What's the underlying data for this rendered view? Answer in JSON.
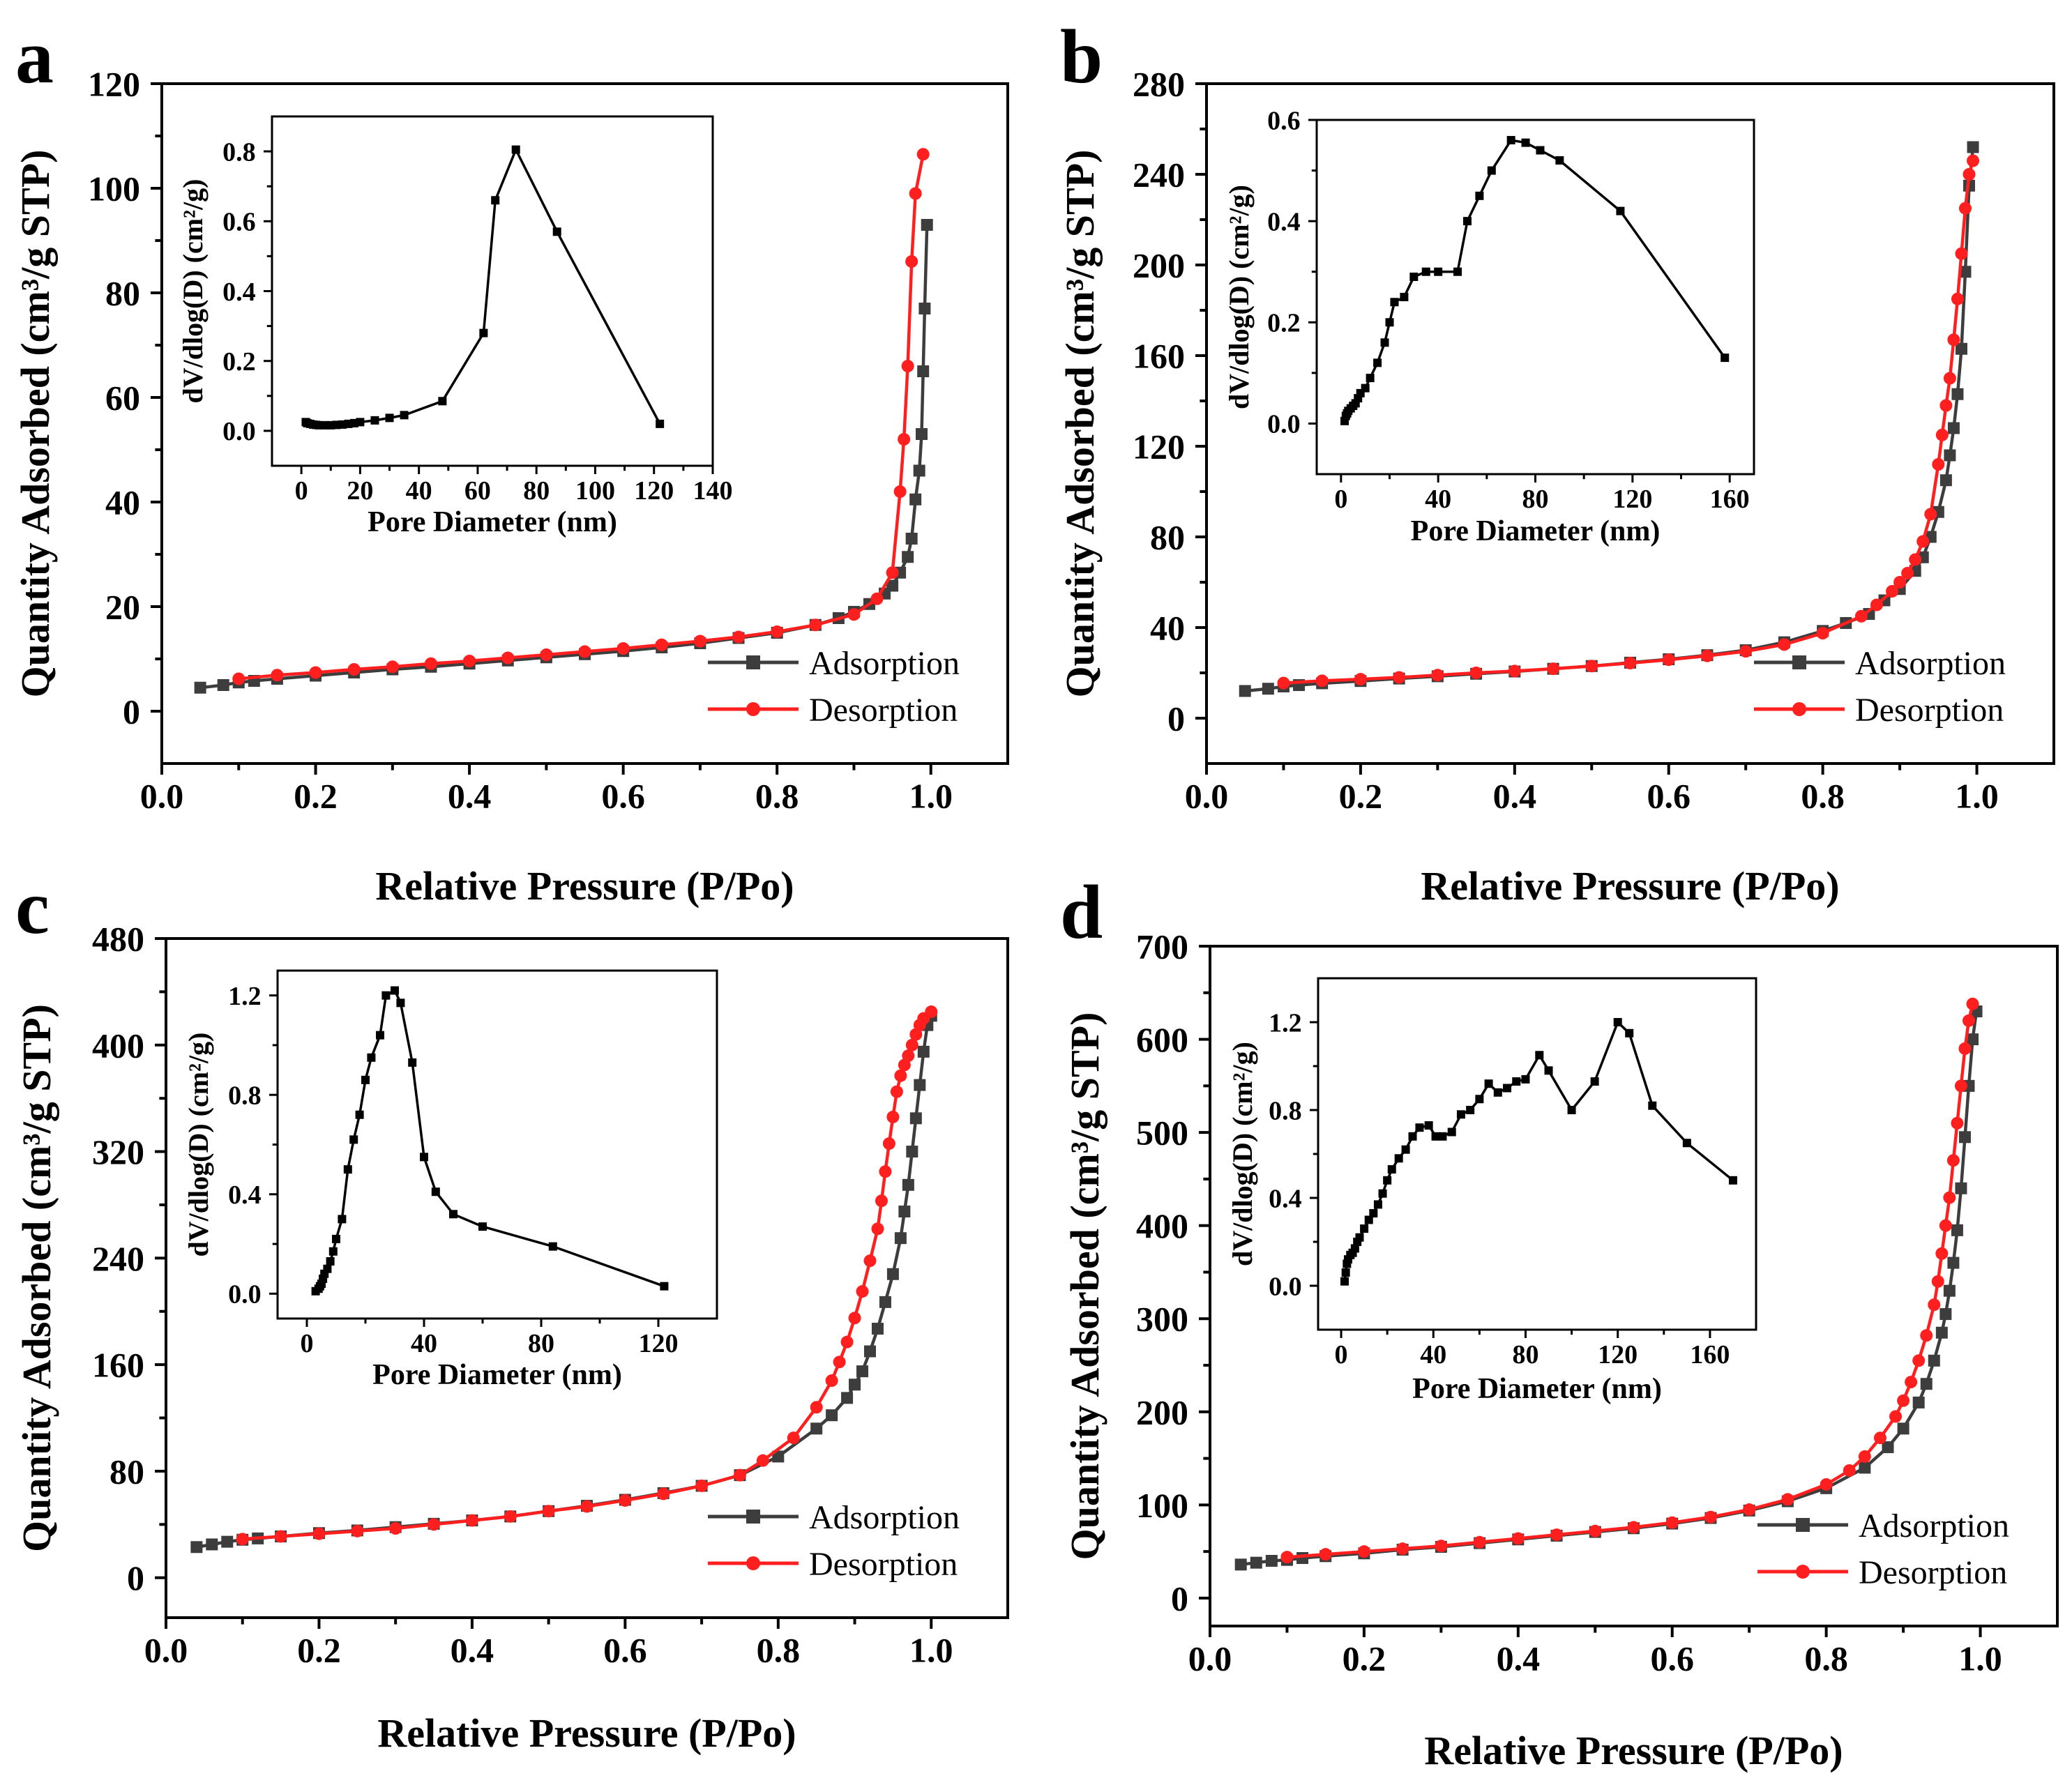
{
  "figure": {
    "series_colors": {
      "adsorption": "#3d3d3d",
      "desorption": "#ff1f1f",
      "inset": "#000000"
    },
    "marker_shapes": {
      "adsorption": "square",
      "desorption": "circle",
      "inset": "square"
    }
  },
  "chart_data": [
    {
      "panel": "a",
      "type": "line",
      "xlabel": "Relative Pressure (P/Po)",
      "ylabel": "Quantity Adsorbed (cm³/g STP)",
      "xlim": [
        0,
        1.1
      ],
      "ylim": [
        -10,
        120
      ],
      "xticks": [
        0.0,
        0.2,
        0.4,
        0.6,
        0.8,
        1.0
      ],
      "xtick_labels": [
        "0.0",
        "0.2",
        "0.4",
        "0.6",
        "0.8",
        "1.0"
      ],
      "yticks": [
        0,
        20,
        40,
        60,
        80,
        100,
        120
      ],
      "legend": [
        "Adsorption",
        "Desorption"
      ],
      "legend_position": "bottom-right",
      "series": [
        {
          "name": "Adsorption",
          "marker": "square",
          "x": [
            0.05,
            0.08,
            0.1,
            0.12,
            0.15,
            0.2,
            0.25,
            0.3,
            0.35,
            0.4,
            0.45,
            0.5,
            0.55,
            0.6,
            0.65,
            0.7,
            0.75,
            0.8,
            0.85,
            0.88,
            0.9,
            0.92,
            0.94,
            0.95,
            0.96,
            0.97,
            0.975,
            0.98,
            0.985,
            0.988,
            0.99,
            0.992,
            0.995
          ],
          "y": [
            4.5,
            5.0,
            5.5,
            5.8,
            6.2,
            6.8,
            7.4,
            8.0,
            8.5,
            9.1,
            9.7,
            10.3,
            10.9,
            11.5,
            12.2,
            13.0,
            14.0,
            15.0,
            16.5,
            17.8,
            19.0,
            20.5,
            22.5,
            24.0,
            26.5,
            29.5,
            33.0,
            40.5,
            46.0,
            53.0,
            65.0,
            77.0,
            93.0
          ]
        },
        {
          "name": "Desorption",
          "marker": "circle",
          "x": [
            0.1,
            0.15,
            0.2,
            0.25,
            0.3,
            0.35,
            0.4,
            0.45,
            0.5,
            0.55,
            0.6,
            0.65,
            0.7,
            0.75,
            0.8,
            0.85,
            0.9,
            0.93,
            0.95,
            0.96,
            0.965,
            0.97,
            0.975,
            0.98,
            0.99
          ],
          "y": [
            6.2,
            6.9,
            7.4,
            8.0,
            8.5,
            9.1,
            9.6,
            10.2,
            10.8,
            11.4,
            12.0,
            12.7,
            13.4,
            14.2,
            15.2,
            16.5,
            18.5,
            21.5,
            26.5,
            42.0,
            52.0,
            66.0,
            86.0,
            99.0,
            106.5
          ]
        }
      ],
      "inset": {
        "xlabel": "Pore Diameter (nm)",
        "ylabel": "dV/dlog(D) (cm²/g)",
        "xlim": [
          -10,
          140
        ],
        "ylim": [
          -0.1,
          0.9
        ],
        "xticks": [
          0,
          20,
          40,
          60,
          80,
          100,
          120,
          140
        ],
        "yticks": [
          0.0,
          0.2,
          0.4,
          0.6,
          0.8
        ],
        "ytick_labels": [
          "0.0",
          "0.2",
          "0.4",
          "0.6",
          "0.8"
        ],
        "x": [
          1.5,
          2,
          3,
          4,
          5,
          6,
          8,
          10,
          12,
          14,
          16,
          18,
          20,
          25,
          30,
          35,
          48,
          62,
          66,
          73,
          87,
          122
        ],
        "y": [
          0.025,
          0.022,
          0.02,
          0.018,
          0.017,
          0.016,
          0.016,
          0.016,
          0.017,
          0.018,
          0.02,
          0.022,
          0.025,
          0.03,
          0.037,
          0.045,
          0.085,
          0.28,
          0.66,
          0.805,
          0.57,
          0.02
        ]
      }
    },
    {
      "panel": "b",
      "type": "line",
      "xlabel": "Relative Pressure (P/Po)",
      "ylabel": "Quantity Adsorbed (cm³/g STP)",
      "xlim": [
        0,
        1.1
      ],
      "ylim": [
        -20,
        280
      ],
      "xticks": [
        0.0,
        0.2,
        0.4,
        0.6,
        0.8,
        1.0
      ],
      "xtick_labels": [
        "0.0",
        "0.2",
        "0.4",
        "0.6",
        "0.8",
        "1.0"
      ],
      "yticks": [
        0,
        40,
        80,
        120,
        160,
        200,
        240,
        280
      ],
      "legend": [
        "Adsorption",
        "Desorption"
      ],
      "legend_position": "bottom-right",
      "series": [
        {
          "name": "Adsorption",
          "marker": "square",
          "x": [
            0.05,
            0.08,
            0.1,
            0.12,
            0.15,
            0.2,
            0.25,
            0.3,
            0.35,
            0.4,
            0.45,
            0.5,
            0.55,
            0.6,
            0.65,
            0.7,
            0.75,
            0.8,
            0.83,
            0.86,
            0.88,
            0.9,
            0.92,
            0.93,
            0.94,
            0.95,
            0.96,
            0.965,
            0.97,
            0.975,
            0.98,
            0.985,
            0.99,
            0.995
          ],
          "y": [
            12,
            13,
            14,
            14.6,
            15.4,
            16.4,
            17.5,
            18.5,
            19.6,
            20.6,
            21.8,
            23,
            24.5,
            26,
            27.8,
            30,
            33.5,
            38.5,
            42,
            46,
            52,
            57,
            65,
            71,
            80,
            91,
            105,
            116,
            128,
            143,
            163,
            197,
            235,
            252
          ]
        },
        {
          "name": "Desorption",
          "marker": "circle",
          "x": [
            0.1,
            0.15,
            0.2,
            0.25,
            0.3,
            0.35,
            0.4,
            0.45,
            0.5,
            0.55,
            0.6,
            0.65,
            0.7,
            0.75,
            0.8,
            0.85,
            0.87,
            0.89,
            0.9,
            0.91,
            0.92,
            0.93,
            0.94,
            0.95,
            0.955,
            0.96,
            0.965,
            0.97,
            0.975,
            0.98,
            0.985,
            0.99,
            0.995
          ],
          "y": [
            15.5,
            16.5,
            17.2,
            18.0,
            19.0,
            20.0,
            20.8,
            21.8,
            23.0,
            24.3,
            25.8,
            27.5,
            29.5,
            32.5,
            37.5,
            45.0,
            50.0,
            56.0,
            60.0,
            64.0,
            70.0,
            78.0,
            90.0,
            112.0,
            125.0,
            138.0,
            150.0,
            167.0,
            185.0,
            205.0,
            225.0,
            240.0,
            246.0
          ]
        }
      ],
      "inset": {
        "xlabel": "Pore Diameter (nm)",
        "ylabel": "dV/dlog(D) (cm²/g)",
        "xlim": [
          -10,
          170
        ],
        "ylim": [
          -0.1,
          0.6
        ],
        "xticks": [
          0,
          40,
          80,
          120,
          160
        ],
        "yticks": [
          0.0,
          0.2,
          0.4,
          0.6
        ],
        "ytick_labels": [
          "0.0",
          "0.2",
          "0.4",
          "0.6"
        ],
        "x": [
          1.5,
          2,
          2.5,
          3,
          4,
          5,
          6,
          7,
          8,
          10,
          12,
          15,
          18,
          20,
          22,
          26,
          30,
          35,
          40,
          48,
          52,
          57,
          62,
          70,
          76,
          82,
          90,
          115,
          158
        ],
        "y": [
          0.005,
          0.015,
          0.02,
          0.025,
          0.03,
          0.035,
          0.04,
          0.05,
          0.06,
          0.07,
          0.09,
          0.12,
          0.16,
          0.2,
          0.24,
          0.25,
          0.29,
          0.3,
          0.3,
          0.3,
          0.4,
          0.45,
          0.5,
          0.56,
          0.555,
          0.54,
          0.52,
          0.42,
          0.13
        ]
      }
    },
    {
      "panel": "c",
      "type": "line",
      "xlabel": "Relative Pressure (P/Po)",
      "ylabel": "Quantity Adsorbed (cm³/g STP)",
      "xlim": [
        0,
        1.1
      ],
      "ylim": [
        -30,
        480
      ],
      "xticks": [
        0.0,
        0.2,
        0.4,
        0.6,
        0.8,
        1.0
      ],
      "xtick_labels": [
        "0.0",
        "0.2",
        "0.4",
        "0.6",
        "0.8",
        "1.0"
      ],
      "yticks": [
        0,
        80,
        160,
        240,
        320,
        400,
        480
      ],
      "legend": [
        "Adsorption",
        "Desorption"
      ],
      "legend_position": "bottom-right",
      "series": [
        {
          "name": "Adsorption",
          "marker": "square",
          "x": [
            0.04,
            0.06,
            0.08,
            0.1,
            0.12,
            0.15,
            0.2,
            0.25,
            0.3,
            0.35,
            0.4,
            0.45,
            0.5,
            0.55,
            0.6,
            0.65,
            0.7,
            0.75,
            0.8,
            0.85,
            0.87,
            0.89,
            0.9,
            0.91,
            0.92,
            0.93,
            0.94,
            0.95,
            0.96,
            0.965,
            0.97,
            0.975,
            0.98,
            0.985,
            0.99,
            0.995,
            1.0
          ],
          "y": [
            23,
            25,
            27,
            28.5,
            29.5,
            31,
            33.5,
            35.5,
            38,
            40.5,
            43,
            46,
            50,
            54,
            58.5,
            63.5,
            69,
            77,
            91,
            112,
            122,
            135,
            145,
            155,
            170,
            187,
            207,
            228,
            255,
            275,
            295,
            320,
            345,
            370,
            395,
            415,
            422
          ]
        },
        {
          "name": "Desorption",
          "marker": "circle",
          "x": [
            0.1,
            0.15,
            0.2,
            0.25,
            0.3,
            0.35,
            0.4,
            0.45,
            0.5,
            0.55,
            0.6,
            0.65,
            0.7,
            0.75,
            0.78,
            0.82,
            0.85,
            0.87,
            0.88,
            0.89,
            0.9,
            0.91,
            0.92,
            0.93,
            0.935,
            0.94,
            0.945,
            0.95,
            0.955,
            0.96,
            0.965,
            0.97,
            0.975,
            0.98,
            0.985,
            0.99,
            1.0
          ],
          "y": [
            29,
            31,
            33,
            35,
            37,
            40,
            43,
            46,
            50,
            53.5,
            58,
            63,
            69,
            77,
            88,
            105,
            128,
            148,
            162,
            177,
            195,
            215,
            238,
            262,
            283,
            305,
            326,
            346,
            365,
            377,
            385,
            392,
            400,
            408,
            415,
            420,
            425
          ]
        }
      ],
      "inset": {
        "xlabel": "Pore Diameter (nm)",
        "ylabel": "dV/dlog(D) (cm²/g)",
        "xlim": [
          -10,
          140
        ],
        "ylim": [
          -0.1,
          1.3
        ],
        "xticks": [
          0,
          40,
          80,
          120
        ],
        "yticks": [
          0.0,
          0.4,
          0.8,
          1.2
        ],
        "ytick_labels": [
          "0.0",
          "0.4",
          "0.8",
          "1.2"
        ],
        "x": [
          3,
          4,
          4.5,
          5,
          5.5,
          6,
          7,
          8,
          9,
          10,
          12,
          14,
          16,
          18,
          20,
          22,
          25,
          27,
          30,
          32,
          36,
          40,
          44,
          50,
          60,
          84,
          122
        ],
        "y": [
          0.01,
          0.02,
          0.03,
          0.04,
          0.06,
          0.08,
          0.1,
          0.13,
          0.17,
          0.22,
          0.3,
          0.5,
          0.62,
          0.72,
          0.86,
          0.95,
          1.04,
          1.2,
          1.22,
          1.17,
          0.93,
          0.55,
          0.41,
          0.32,
          0.27,
          0.19,
          0.03
        ]
      }
    },
    {
      "panel": "d",
      "type": "line",
      "xlabel": "Relative Pressure (P/Po)",
      "ylabel": "Quantity Adsorbed (cm³/g STP)",
      "xlim": [
        0,
        1.1
      ],
      "ylim": [
        -30,
        700
      ],
      "xticks": [
        0.0,
        0.2,
        0.4,
        0.6,
        0.8,
        1.0
      ],
      "xtick_labels": [
        "0.0",
        "0.2",
        "0.4",
        "0.6",
        "0.8",
        "1.0"
      ],
      "yticks": [
        0,
        100,
        200,
        300,
        400,
        500,
        600,
        700
      ],
      "legend": [
        "Adsorption",
        "Desorption"
      ],
      "legend_position": "bottom-right",
      "series": [
        {
          "name": "Adsorption",
          "marker": "square",
          "x": [
            0.04,
            0.06,
            0.08,
            0.1,
            0.12,
            0.15,
            0.2,
            0.25,
            0.3,
            0.35,
            0.4,
            0.45,
            0.5,
            0.55,
            0.6,
            0.65,
            0.7,
            0.75,
            0.8,
            0.85,
            0.88,
            0.9,
            0.92,
            0.93,
            0.94,
            0.95,
            0.955,
            0.96,
            0.965,
            0.97,
            0.975,
            0.98,
            0.985,
            0.99,
            0.995
          ],
          "y": [
            36,
            38,
            40,
            41,
            43,
            45,
            48,
            52,
            55,
            59,
            63,
            67,
            71,
            75,
            80,
            86,
            94,
            104,
            118,
            140,
            162,
            182,
            210,
            230,
            255,
            285,
            305,
            330,
            360,
            395,
            440,
            495,
            550,
            600,
            630
          ]
        },
        {
          "name": "Desorption",
          "marker": "circle",
          "x": [
            0.1,
            0.15,
            0.2,
            0.25,
            0.3,
            0.35,
            0.4,
            0.45,
            0.5,
            0.55,
            0.6,
            0.65,
            0.7,
            0.75,
            0.8,
            0.83,
            0.85,
            0.87,
            0.89,
            0.9,
            0.91,
            0.92,
            0.93,
            0.94,
            0.945,
            0.95,
            0.955,
            0.96,
            0.965,
            0.97,
            0.975,
            0.98,
            0.985,
            0.99
          ],
          "y": [
            44,
            47,
            50,
            53,
            56,
            60,
            64,
            68,
            72,
            76,
            81,
            87,
            95,
            106,
            122,
            137,
            152,
            172,
            195,
            212,
            232,
            255,
            282,
            315,
            340,
            370,
            400,
            430,
            470,
            510,
            550,
            590,
            620,
            638
          ]
        }
      ],
      "inset": {
        "xlabel": "Pore Diameter (nm)",
        "ylabel": "dV/dlog(D) (cm²/g)",
        "xlim": [
          -10,
          180
        ],
        "ylim": [
          -0.2,
          1.4
        ],
        "xticks": [
          0,
          40,
          80,
          120,
          160
        ],
        "yticks": [
          0.0,
          0.4,
          0.8,
          1.2
        ],
        "ytick_labels": [
          "0.0",
          "0.4",
          "0.8",
          "1.2"
        ],
        "x": [
          1.5,
          2,
          2.5,
          3,
          4,
          5,
          6,
          7,
          8,
          10,
          12,
          14,
          16,
          18,
          20,
          22,
          25,
          28,
          31,
          34,
          38,
          41,
          44,
          48,
          52,
          56,
          60,
          64,
          68,
          72,
          76,
          80,
          86,
          90,
          100,
          110,
          120,
          125,
          135,
          150,
          170
        ],
        "y": [
          0.02,
          0.06,
          0.1,
          0.12,
          0.14,
          0.15,
          0.17,
          0.2,
          0.22,
          0.26,
          0.3,
          0.33,
          0.37,
          0.42,
          0.48,
          0.53,
          0.58,
          0.62,
          0.68,
          0.72,
          0.73,
          0.68,
          0.68,
          0.7,
          0.78,
          0.8,
          0.85,
          0.92,
          0.88,
          0.9,
          0.93,
          0.94,
          1.05,
          0.98,
          0.8,
          0.93,
          1.2,
          1.15,
          0.82,
          0.65,
          0.48
        ]
      }
    }
  ]
}
